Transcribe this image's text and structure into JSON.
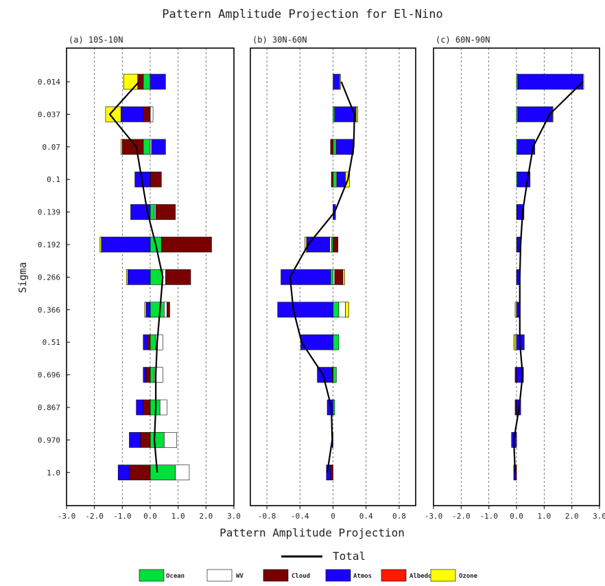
{
  "chart_data": {
    "type": "bar",
    "orientation": "horizontal-stacked",
    "title": "Pattern Amplitude Projection for El-Nino",
    "xlabel": "Pattern Amplitude Projection",
    "ylabel": "Sigma",
    "sigma_levels": [
      "0.014",
      "0.037",
      "0.07",
      "0.1",
      "0.139",
      "0.192",
      "0.266",
      "0.366",
      "0.51",
      "0.696",
      "0.867",
      "0.970",
      "1.0"
    ],
    "components": [
      {
        "key": "ocean",
        "label": "Ocean",
        "color": "#00e03a"
      },
      {
        "key": "wv",
        "label": "WV",
        "color": "#ffffff"
      },
      {
        "key": "cloud",
        "label": "Cloud",
        "color": "#7a0000"
      },
      {
        "key": "atmos",
        "label": "Atmos",
        "color": "#1a00ff"
      },
      {
        "key": "albedo",
        "label": "Albedo",
        "color": "#ff1a00"
      },
      {
        "key": "ozone",
        "label": "Ozone",
        "color": "#ffff00"
      }
    ],
    "total_label": "Total",
    "panels": [
      {
        "title": "(a) 10S-10N",
        "xlim": [
          -3,
          3
        ],
        "xticks": [
          -3,
          -2,
          -1,
          0,
          1,
          2,
          3
        ],
        "xticklabels": [
          "-3.0",
          "-2.0",
          "-1.0",
          "0.0",
          "1.0",
          "2.0",
          "3.0"
        ],
        "grid": [
          -2,
          -1,
          0,
          1,
          2
        ],
        "levels": [
          {
            "ocean": -0.25,
            "wv": 0,
            "cloud": -0.2,
            "atmos": 0.55,
            "albedo": 0,
            "ozone": -0.5
          },
          {
            "ocean": 0,
            "wv": 0.1,
            "cloud": -0.25,
            "atmos": -0.8,
            "albedo": 0,
            "ozone": -0.55
          },
          {
            "ocean": -0.25,
            "wv": 0.05,
            "cloud": -0.75,
            "atmos": 0.5,
            "albedo": 0,
            "ozone": -0.05
          },
          {
            "ocean": 0,
            "wv": 0.02,
            "cloud": 0.38,
            "atmos": -0.55,
            "albedo": 0,
            "ozone": 0
          },
          {
            "ocean": 0.15,
            "wv": 0.05,
            "cloud": 0.7,
            "atmos": -0.7,
            "albedo": 0,
            "ozone": 0
          },
          {
            "ocean": 0.4,
            "wv": 0,
            "cloud": 1.8,
            "atmos": -1.75,
            "albedo": 0,
            "ozone": -0.05
          },
          {
            "ocean": 0.45,
            "wv": 0.1,
            "cloud": 0.9,
            "atmos": -0.8,
            "albedo": 0,
            "ozone": -0.05
          },
          {
            "ocean": 0.5,
            "wv": 0.1,
            "cloud": 0.1,
            "atmos": -0.15,
            "albedo": 0,
            "ozone": -0.05
          },
          {
            "ocean": 0.2,
            "wv": 0.25,
            "cloud": -0.1,
            "atmos": -0.15,
            "albedo": 0,
            "ozone": 0
          },
          {
            "ocean": 0.15,
            "wv": 0.3,
            "cloud": -0.15,
            "atmos": -0.1,
            "albedo": 0,
            "ozone": 0
          },
          {
            "ocean": 0.35,
            "wv": 0.25,
            "cloud": -0.25,
            "atmos": -0.25,
            "albedo": 0,
            "ozone": 0
          },
          {
            "ocean": 0.5,
            "wv": 0.45,
            "cloud": -0.35,
            "atmos": -0.4,
            "albedo": 0,
            "ozone": 0
          },
          {
            "ocean": 0.9,
            "wv": 0.5,
            "cloud": -0.75,
            "atmos": -0.4,
            "albedo": 0,
            "ozone": 0
          }
        ],
        "total": [
          -0.4,
          -1.45,
          -0.5,
          -0.3,
          -0.1,
          0.2,
          0.45,
          0.35,
          0.25,
          0.2,
          0.2,
          0.15,
          0.25
        ]
      },
      {
        "title": "(b) 30N-60N",
        "xlim": [
          -1.0,
          1.0
        ],
        "xticks": [
          -0.8,
          -0.4,
          0,
          0.4,
          0.8
        ],
        "xticklabels": [
          "-0.8",
          "-0.4",
          "0",
          "0.4",
          "0.8"
        ],
        "grid": [
          -0.8,
          -0.4,
          0,
          0.4,
          0.8
        ],
        "levels": [
          {
            "ocean": 0.01,
            "wv": 0,
            "cloud": 0,
            "atmos": 0.07,
            "albedo": 0,
            "ozone": 0.01
          },
          {
            "ocean": 0.02,
            "wv": 0,
            "cloud": 0,
            "atmos": 0.26,
            "albedo": 0,
            "ozone": 0.02
          },
          {
            "ocean": 0.03,
            "wv": 0.01,
            "cloud": -0.03,
            "atmos": 0.2,
            "albedo": 0,
            "ozone": 0.01
          },
          {
            "ocean": 0.04,
            "wv": 0.01,
            "cloud": -0.02,
            "atmos": 0.1,
            "albedo": 0,
            "ozone": 0.05
          },
          {
            "ocean": 0,
            "wv": 0,
            "cloud": 0,
            "atmos": 0.03,
            "albedo": 0,
            "ozone": 0
          },
          {
            "ocean": -0.02,
            "wv": -0.02,
            "cloud": 0.06,
            "atmos": -0.28,
            "albedo": 0,
            "ozone": -0.02
          },
          {
            "ocean": -0.03,
            "wv": 0.02,
            "cloud": 0.1,
            "atmos": -0.6,
            "albedo": 0,
            "ozone": 0.02
          },
          {
            "ocean": 0.07,
            "wv": 0.08,
            "cloud": 0,
            "atmos": -0.67,
            "albedo": 0,
            "ozone": 0.04
          },
          {
            "ocean": 0.07,
            "wv": 0,
            "cloud": 0,
            "atmos": -0.39,
            "albedo": 0,
            "ozone": 0
          },
          {
            "ocean": 0.04,
            "wv": 0,
            "cloud": -0.01,
            "atmos": -0.18,
            "albedo": 0,
            "ozone": 0
          },
          {
            "ocean": 0.02,
            "wv": 0,
            "cloud": 0,
            "atmos": -0.07,
            "albedo": 0,
            "ozone": 0
          },
          {
            "ocean": 0,
            "wv": 0,
            "cloud": 0,
            "atmos": -0.01,
            "albedo": 0,
            "ozone": 0
          },
          {
            "ocean": 0,
            "wv": 0,
            "cloud": -0.03,
            "atmos": -0.05,
            "albedo": 0,
            "ozone": 0
          }
        ],
        "total": [
          0.1,
          0.26,
          0.25,
          0.18,
          0.02,
          -0.3,
          -0.52,
          -0.48,
          -0.38,
          -0.12,
          -0.02,
          -0.01,
          -0.07
        ]
      },
      {
        "title": "(c) 60N-90N",
        "xlim": [
          -3,
          3
        ],
        "xticks": [
          -3,
          -2,
          -1,
          0,
          1,
          2,
          3
        ],
        "xticklabels": [
          "-3.0",
          "-2.0",
          "-1.0",
          "0.0",
          "1.0",
          "2.0",
          "3.0"
        ],
        "grid": [
          -2,
          -1,
          0,
          1,
          2
        ],
        "levels": [
          {
            "ocean": 0.05,
            "wv": 0,
            "cloud": 0,
            "atmos": 2.35,
            "albedo": 0,
            "ozone": 0.03
          },
          {
            "ocean": 0.05,
            "wv": 0,
            "cloud": 0,
            "atmos": 1.25,
            "albedo": 0,
            "ozone": 0.01
          },
          {
            "ocean": 0.04,
            "wv": 0,
            "cloud": 0,
            "atmos": 0.62,
            "albedo": 0,
            "ozone": 0
          },
          {
            "ocean": 0.04,
            "wv": 0,
            "cloud": 0,
            "atmos": 0.45,
            "albedo": 0,
            "ozone": 0
          },
          {
            "ocean": 0.02,
            "wv": 0,
            "cloud": 0,
            "atmos": 0.25,
            "albedo": 0,
            "ozone": 0
          },
          {
            "ocean": 0.02,
            "wv": 0,
            "cloud": 0,
            "atmos": 0.12,
            "albedo": 0,
            "ozone": 0
          },
          {
            "ocean": 0.01,
            "wv": 0,
            "cloud": 0,
            "atmos": 0.1,
            "albedo": 0,
            "ozone": 0
          },
          {
            "ocean": 0,
            "wv": 0,
            "cloud": 0,
            "atmos": 0.12,
            "albedo": 0,
            "ozone": -0.05
          },
          {
            "ocean": 0,
            "wv": -0.05,
            "cloud": 0,
            "atmos": 0.28,
            "albedo": 0,
            "ozone": -0.05
          },
          {
            "ocean": 0,
            "wv": 0,
            "cloud": -0.05,
            "atmos": 0.25,
            "albedo": 0,
            "ozone": 0
          },
          {
            "ocean": 0,
            "wv": 0,
            "cloud": -0.05,
            "atmos": 0.15,
            "albedo": 0,
            "ozone": 0
          },
          {
            "ocean": 0,
            "wv": 0,
            "cloud": 0,
            "atmos": -0.18,
            "albedo": 0,
            "ozone": 0
          },
          {
            "ocean": 0,
            "wv": 0,
            "cloud": -0.05,
            "atmos": -0.05,
            "albedo": 0,
            "ozone": 0
          }
        ],
        "total": [
          2.4,
          1.2,
          0.6,
          0.4,
          0.22,
          0.15,
          0.12,
          0.12,
          0.12,
          0.22,
          0.1,
          -0.1,
          -0.05
        ]
      }
    ]
  }
}
